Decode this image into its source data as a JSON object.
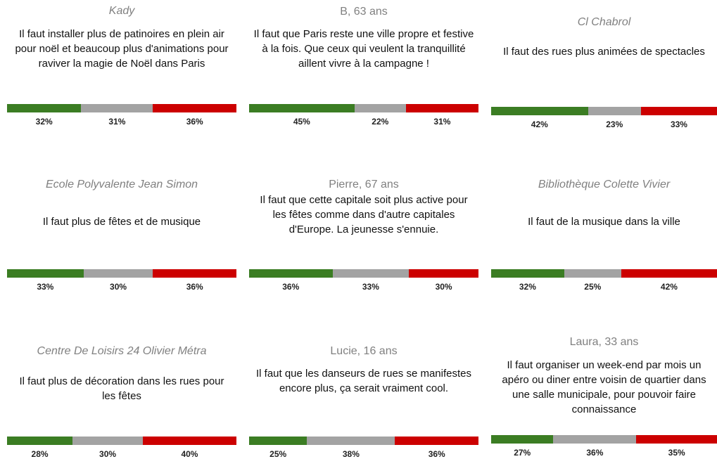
{
  "colors": [
    "#3b7d23",
    "#a3a3a3",
    "#cc0000"
  ],
  "cards": [
    {
      "author": "Kady",
      "quote": "Il faut installer plus de patinoires en plein air pour noël et beaucoup plus d'animations pour raviver la magie de Noël dans Paris",
      "values": [
        32,
        31,
        36
      ],
      "value_labels": [
        "32%",
        "31%",
        "36%"
      ]
    },
    {
      "author": "B, 63 ans",
      "quote": "Il faut que Paris reste une ville propre et festive à la fois. Que ceux qui veulent la tranquillité aillent vivre à la campagne !",
      "values": [
        45,
        22,
        31
      ],
      "value_labels": [
        "45%",
        "22%",
        "31%"
      ]
    },
    {
      "author": "Cl Chabrol",
      "quote": "Il faut des rues plus animées de spectacles",
      "values": [
        42,
        23,
        33
      ],
      "value_labels": [
        "42%",
        "23%",
        "33%"
      ]
    },
    {
      "author": "Ecole Polyvalente Jean Simon",
      "quote": "Il faut plus de fêtes et de musique",
      "values": [
        33,
        30,
        36
      ],
      "value_labels": [
        "33%",
        "30%",
        "36%"
      ]
    },
    {
      "author": "Pierre, 67 ans",
      "quote": "Il faut que cette capitale soit plus active pour les fêtes comme dans d'autre capitales d'Europe. La jeunesse s'ennuie.",
      "values": [
        36,
        33,
        30
      ],
      "value_labels": [
        "36%",
        "33%",
        "30%"
      ]
    },
    {
      "author": "Bibliothèque Colette Vivier",
      "quote": "Il faut de la musique dans la ville",
      "values": [
        32,
        25,
        42
      ],
      "value_labels": [
        "32%",
        "25%",
        "42%"
      ]
    },
    {
      "author": "Centre De Loisirs 24 Olivier Métra",
      "quote": "Il faut plus de décoration dans les rues pour les fêtes",
      "values": [
        28,
        30,
        40
      ],
      "value_labels": [
        "28%",
        "30%",
        "40%"
      ]
    },
    {
      "author": "Lucie, 16 ans",
      "quote": "Il faut que les danseurs de rues se manifestes encore plus, ça serait vraiment cool.",
      "values": [
        25,
        38,
        36
      ],
      "value_labels": [
        "25%",
        "38%",
        "36%"
      ]
    },
    {
      "author": "Laura, 33 ans",
      "quote": "Il faut organiser un week-end par mois un apéro ou diner entre voisin de quartier dans une salle municipale, pour pouvoir faire connaissance",
      "values": [
        27,
        36,
        35
      ],
      "value_labels": [
        "27%",
        "36%",
        "35%"
      ]
    }
  ]
}
